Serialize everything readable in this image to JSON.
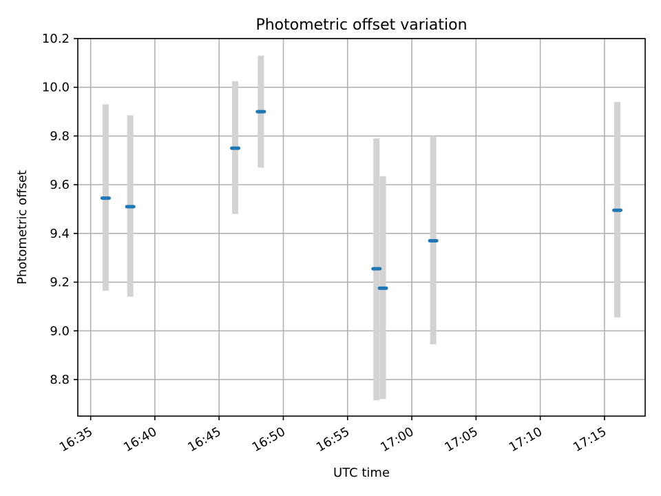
{
  "chart_data": {
    "type": "scatter",
    "title": "Photometric offset variation",
    "xlabel": "UTC time",
    "ylabel": "Photometric offset",
    "xlim": [
      "16:34:00",
      "17:18:10"
    ],
    "ylim": [
      8.65,
      10.2
    ],
    "x_ticks": [
      "16:35",
      "16:40",
      "16:45",
      "16:50",
      "16:55",
      "17:00",
      "17:05",
      "17:10",
      "17:15"
    ],
    "y_ticks": [
      "8.8",
      "9.0",
      "9.2",
      "9.4",
      "9.6",
      "9.8",
      "10.0",
      "10.2"
    ],
    "grid": true,
    "series": [
      {
        "marker_color": "#1f77b4",
        "errorbar_color": "#d3d3d3",
        "points": [
          {
            "x": "16:36:10",
            "y": 9.545,
            "yerr_low": 9.165,
            "yerr_high": 9.93
          },
          {
            "x": "16:38:05",
            "y": 9.51,
            "yerr_low": 9.14,
            "yerr_high": 9.885
          },
          {
            "x": "16:46:15",
            "y": 9.75,
            "yerr_low": 9.48,
            "yerr_high": 10.025
          },
          {
            "x": "16:48:15",
            "y": 9.9,
            "yerr_low": 9.67,
            "yerr_high": 10.13
          },
          {
            "x": "16:57:15",
            "y": 9.255,
            "yerr_low": 8.715,
            "yerr_high": 9.79
          },
          {
            "x": "16:57:45",
            "y": 9.175,
            "yerr_low": 8.72,
            "yerr_high": 9.635
          },
          {
            "x": "17:01:40",
            "y": 9.37,
            "yerr_low": 8.945,
            "yerr_high": 9.8
          },
          {
            "x": "17:16:00",
            "y": 9.495,
            "yerr_low": 9.055,
            "yerr_high": 9.94
          }
        ]
      }
    ]
  }
}
